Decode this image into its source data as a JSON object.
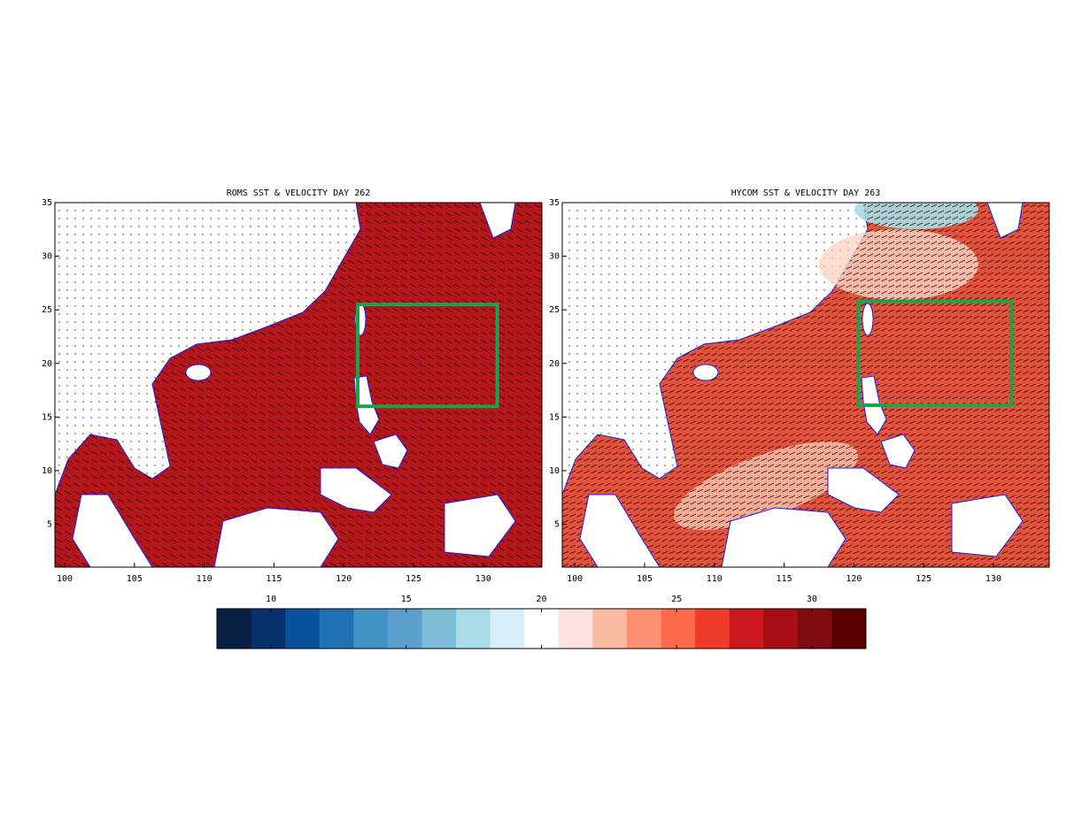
{
  "panels": [
    {
      "title": "ROMS SST & VELOCITY DAY 262",
      "xlim": [
        99.3,
        134.2
      ],
      "ylim": [
        1,
        35
      ],
      "xticks": [
        100,
        105,
        110,
        115,
        120,
        125,
        130
      ],
      "yticks": [
        5,
        10,
        15,
        20,
        25,
        30,
        35
      ],
      "box": {
        "lon": [
          121,
          131
        ],
        "lat": [
          16,
          25.5
        ]
      },
      "ocean_color": "#b3171c",
      "box_color": "#1aa34a"
    },
    {
      "title": "HYCOM SST & VELOCITY DAY 263",
      "xlim": [
        99.1,
        134
      ],
      "ylim": [
        1,
        35
      ],
      "xticks": [
        100,
        105,
        110,
        115,
        120,
        125,
        130
      ],
      "yticks": [
        5,
        10,
        15,
        20,
        25,
        30,
        35
      ],
      "box": {
        "lon": [
          120.3,
          131.3
        ],
        "lat": [
          16.1,
          25.8
        ]
      },
      "ocean_color": "#e5523b",
      "box_color": "#1aa34a"
    }
  ],
  "colorbar": {
    "clim": [
      8,
      32
    ],
    "ticks": [
      10,
      15,
      20,
      25,
      30
    ],
    "colors": [
      "#0a1f44",
      "#08306b",
      "#08519c",
      "#2171b5",
      "#4292c6",
      "#5a9fce",
      "#7bbcd6",
      "#a8dbe6",
      "#d6eff8",
      "#ffffff",
      "#fde0e0",
      "#fcbba1",
      "#fc9272",
      "#fb6a4a",
      "#ef3b2c",
      "#cb181d",
      "#a50f15",
      "#7f0c10",
      "#5a0000"
    ]
  }
}
